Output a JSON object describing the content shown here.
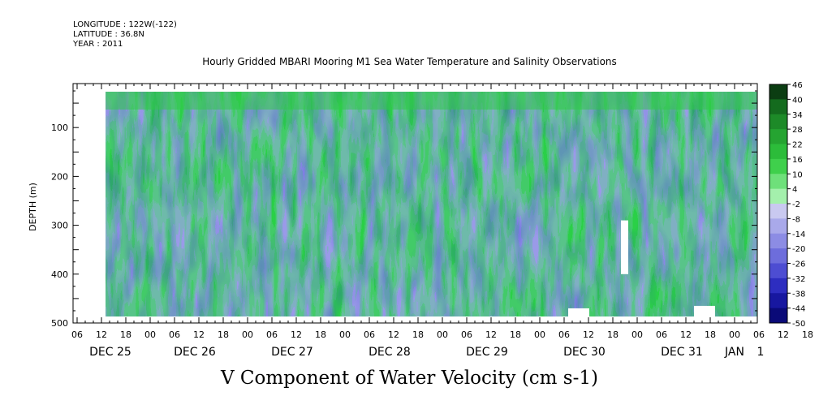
{
  "header": {
    "longitude": "LONGITUDE : 122W(-122)",
    "latitude": "LATITUDE : 36.8N",
    "year": "YEAR : 2011"
  },
  "chart_data": {
    "type": "heatmap",
    "title": "Hourly Gridded MBARI Mooring M1 Sea Water Temperature and Salinity Observations",
    "xlabel": "V Component of Water Velocity (cm s-1)",
    "ylabel": "DEPTH (m)",
    "ylim": [
      500,
      10
    ],
    "y_reversed": true,
    "y_ticks": [
      100,
      200,
      300,
      400,
      500
    ],
    "y_tick_labels": [
      "100",
      "200",
      "300",
      "400",
      "500"
    ],
    "x_hour_labels": [
      "06",
      "12",
      "18",
      "00",
      "06",
      "12",
      "18",
      "00",
      "06",
      "12",
      "18",
      "00",
      "06",
      "12",
      "18",
      "00",
      "06",
      "12",
      "18",
      "00",
      "06",
      "12",
      "18",
      "00",
      "06",
      "12",
      "18",
      "00",
      "06",
      "12",
      "18",
      "00",
      "06",
      "12",
      "18",
      "00"
    ],
    "x_day_labels": [
      "DEC 25",
      "DEC 26",
      "DEC 27",
      "DEC 28",
      "DEC 29",
      "DEC 30",
      "DEC 31",
      "JAN",
      "1"
    ],
    "data_start": "DEC 25 12:00",
    "data_end": "JAN 1 00:00",
    "colorbar": {
      "levels": [
        46,
        40,
        34,
        28,
        22,
        16,
        10,
        4,
        -2,
        -8,
        -14,
        -20,
        -26,
        -32,
        -38,
        -44,
        -50
      ],
      "colors": [
        "#0b3d12",
        "#146b1e",
        "#1d8a28",
        "#25a431",
        "#2cbc3a",
        "#3fd04c",
        "#6ee07a",
        "#a4f0ac",
        "#c9c9f0",
        "#a9a9ea",
        "#8c8ce4",
        "#6d6ddc",
        "#4d4dd2",
        "#2d2dc0",
        "#1717a0",
        "#0a0a78"
      ]
    },
    "data_gaps": [
      {
        "time": "DEC 30 07:00",
        "depth_from": 470,
        "depth_to": 490
      },
      {
        "time": "DEC 30 20:00",
        "depth_from": 290,
        "depth_to": 400
      },
      {
        "time": "DEC 31 14:00",
        "depth_from": 465,
        "depth_to": 490
      }
    ]
  }
}
